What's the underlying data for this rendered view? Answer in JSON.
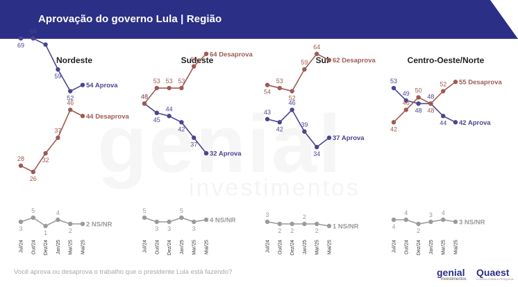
{
  "title": "Aprovação do governo Lula | Região",
  "question": "Você aprova ou desaprova o trabalho que o presidente Lula está fazendo?",
  "watermark": {
    "main": "genial",
    "sub": "investimentos"
  },
  "logos": {
    "genial": "genial",
    "genial_sub": "investimentos",
    "quaest": "Quaest",
    "quaest_sub": "CONSULTORIA & PESQUISA"
  },
  "colors": {
    "aprova": "#4a4590",
    "desaprova": "#9e5a52",
    "ns": "#9a9a9a",
    "header": "#2b2f86"
  },
  "chart_data": [
    {
      "type": "line",
      "title": "Nordeste",
      "categories": [
        "Jul/24",
        "Out/24",
        "Dez/24",
        "Jan/25",
        "Mar/25",
        "Mai/25"
      ],
      "series": [
        {
          "name": "Aprova",
          "values": [
            69,
            69,
            67,
            59,
            52,
            54
          ],
          "end_label": "54 Aprova"
        },
        {
          "name": "Desaprova",
          "values": [
            28,
            26,
            32,
            37,
            46,
            44
          ],
          "end_label": "44 Desaprova"
        },
        {
          "name": "NS/NR",
          "values": [
            3,
            5,
            1,
            4,
            2,
            2
          ],
          "end_label": "2 NS/NR"
        }
      ]
    },
    {
      "type": "line",
      "title": "Sudeste",
      "categories": [
        "Jul/24",
        "Out/24",
        "Dez/24",
        "Jan/25",
        "Mar/25",
        "Mai/25"
      ],
      "series": [
        {
          "name": "Aprova",
          "values": [
            48,
            45,
            44,
            42,
            37,
            32
          ],
          "end_label": "32 Aprova"
        },
        {
          "name": "Desaprova",
          "values": [
            48,
            53,
            53,
            53,
            60,
            64
          ],
          "end_label": "64 Desaprova"
        },
        {
          "name": "NS/NR",
          "values": [
            5,
            3,
            3,
            5,
            3,
            4
          ],
          "end_label": "4 NS/NR"
        }
      ]
    },
    {
      "type": "line",
      "title": "Sul",
      "categories": [
        "Jul/24",
        "Out/24",
        "Dez/24",
        "Jan/25",
        "Mar/25",
        "Mai/25"
      ],
      "series": [
        {
          "name": "Aprova",
          "values": [
            43,
            42,
            46,
            39,
            34,
            37
          ],
          "end_label": "37 Aprova"
        },
        {
          "name": "Desaprova",
          "values": [
            54,
            53,
            52,
            59,
            64,
            62
          ],
          "end_label": "62 Desaprova"
        },
        {
          "name": "NS/NR",
          "values": [
            3,
            2,
            2,
            2,
            2,
            1
          ],
          "end_label": "1 NS/NR"
        }
      ]
    },
    {
      "type": "line",
      "title": "Centro-Oeste/Norte",
      "categories": [
        "Jul/24",
        "Out/24",
        "Dez/24",
        "Jan/25",
        "Mar/25",
        "Mai/25"
      ],
      "series": [
        {
          "name": "Aprova",
          "values": [
            53,
            49,
            48,
            48,
            44,
            42
          ],
          "end_label": "42 Aprova"
        },
        {
          "name": "Desaprova",
          "values": [
            42,
            46,
            50,
            48,
            52,
            55
          ],
          "end_label": "55 Desaprova"
        },
        {
          "name": "NS/NR",
          "values": [
            4,
            4,
            2,
            3,
            4,
            3
          ],
          "end_label": "3 NS/NR"
        }
      ]
    }
  ]
}
